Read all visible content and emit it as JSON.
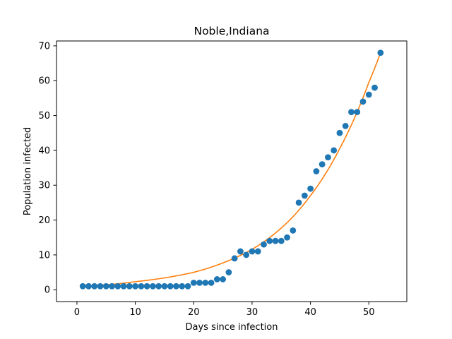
{
  "chart_data": {
    "type": "scatter",
    "title": "Noble,Indiana",
    "xlabel": "Days since infection",
    "ylabel": "Population infected",
    "xlim": [
      -3.5,
      56.5
    ],
    "ylim": [
      -3.4,
      71.4
    ],
    "xticks": [
      0,
      10,
      20,
      30,
      40,
      50
    ],
    "yticks": [
      0,
      10,
      20,
      30,
      40,
      50,
      60,
      70
    ],
    "grid": false,
    "colors": {
      "points": "#1f77b4",
      "fit": "#ff7f0e"
    },
    "series": [
      {
        "kind": "scatter",
        "x": [
          1,
          2,
          3,
          4,
          5,
          6,
          7,
          8,
          9,
          10,
          11,
          12,
          13,
          14,
          15,
          16,
          17,
          18,
          19,
          20,
          21,
          22,
          23,
          24,
          25,
          26,
          27,
          28,
          29,
          30,
          31,
          32,
          33,
          34,
          35,
          36,
          37,
          38,
          39,
          40,
          41,
          42,
          43,
          44,
          45,
          46,
          47,
          48,
          49,
          50,
          51,
          52
        ],
        "y": [
          1,
          1,
          1,
          1,
          1,
          1,
          1,
          1,
          1,
          1,
          1,
          1,
          1,
          1,
          1,
          1,
          1,
          1,
          1,
          2,
          2,
          2,
          2,
          3,
          3,
          5,
          9,
          11,
          10,
          11,
          11,
          13,
          14,
          14,
          14,
          15,
          17,
          25,
          27,
          29,
          34,
          36,
          38,
          40,
          45,
          47,
          51,
          51,
          54,
          56,
          58,
          68
        ]
      },
      {
        "kind": "line",
        "x": [
          1,
          5,
          10,
          15,
          20,
          25,
          30,
          35,
          40,
          45,
          50,
          52
        ],
        "y": [
          1.0,
          1.4,
          2.3,
          3.4,
          5.0,
          7.7,
          11.6,
          17.7,
          27.0,
          40.5,
          59.5,
          68.0
        ]
      }
    ]
  }
}
